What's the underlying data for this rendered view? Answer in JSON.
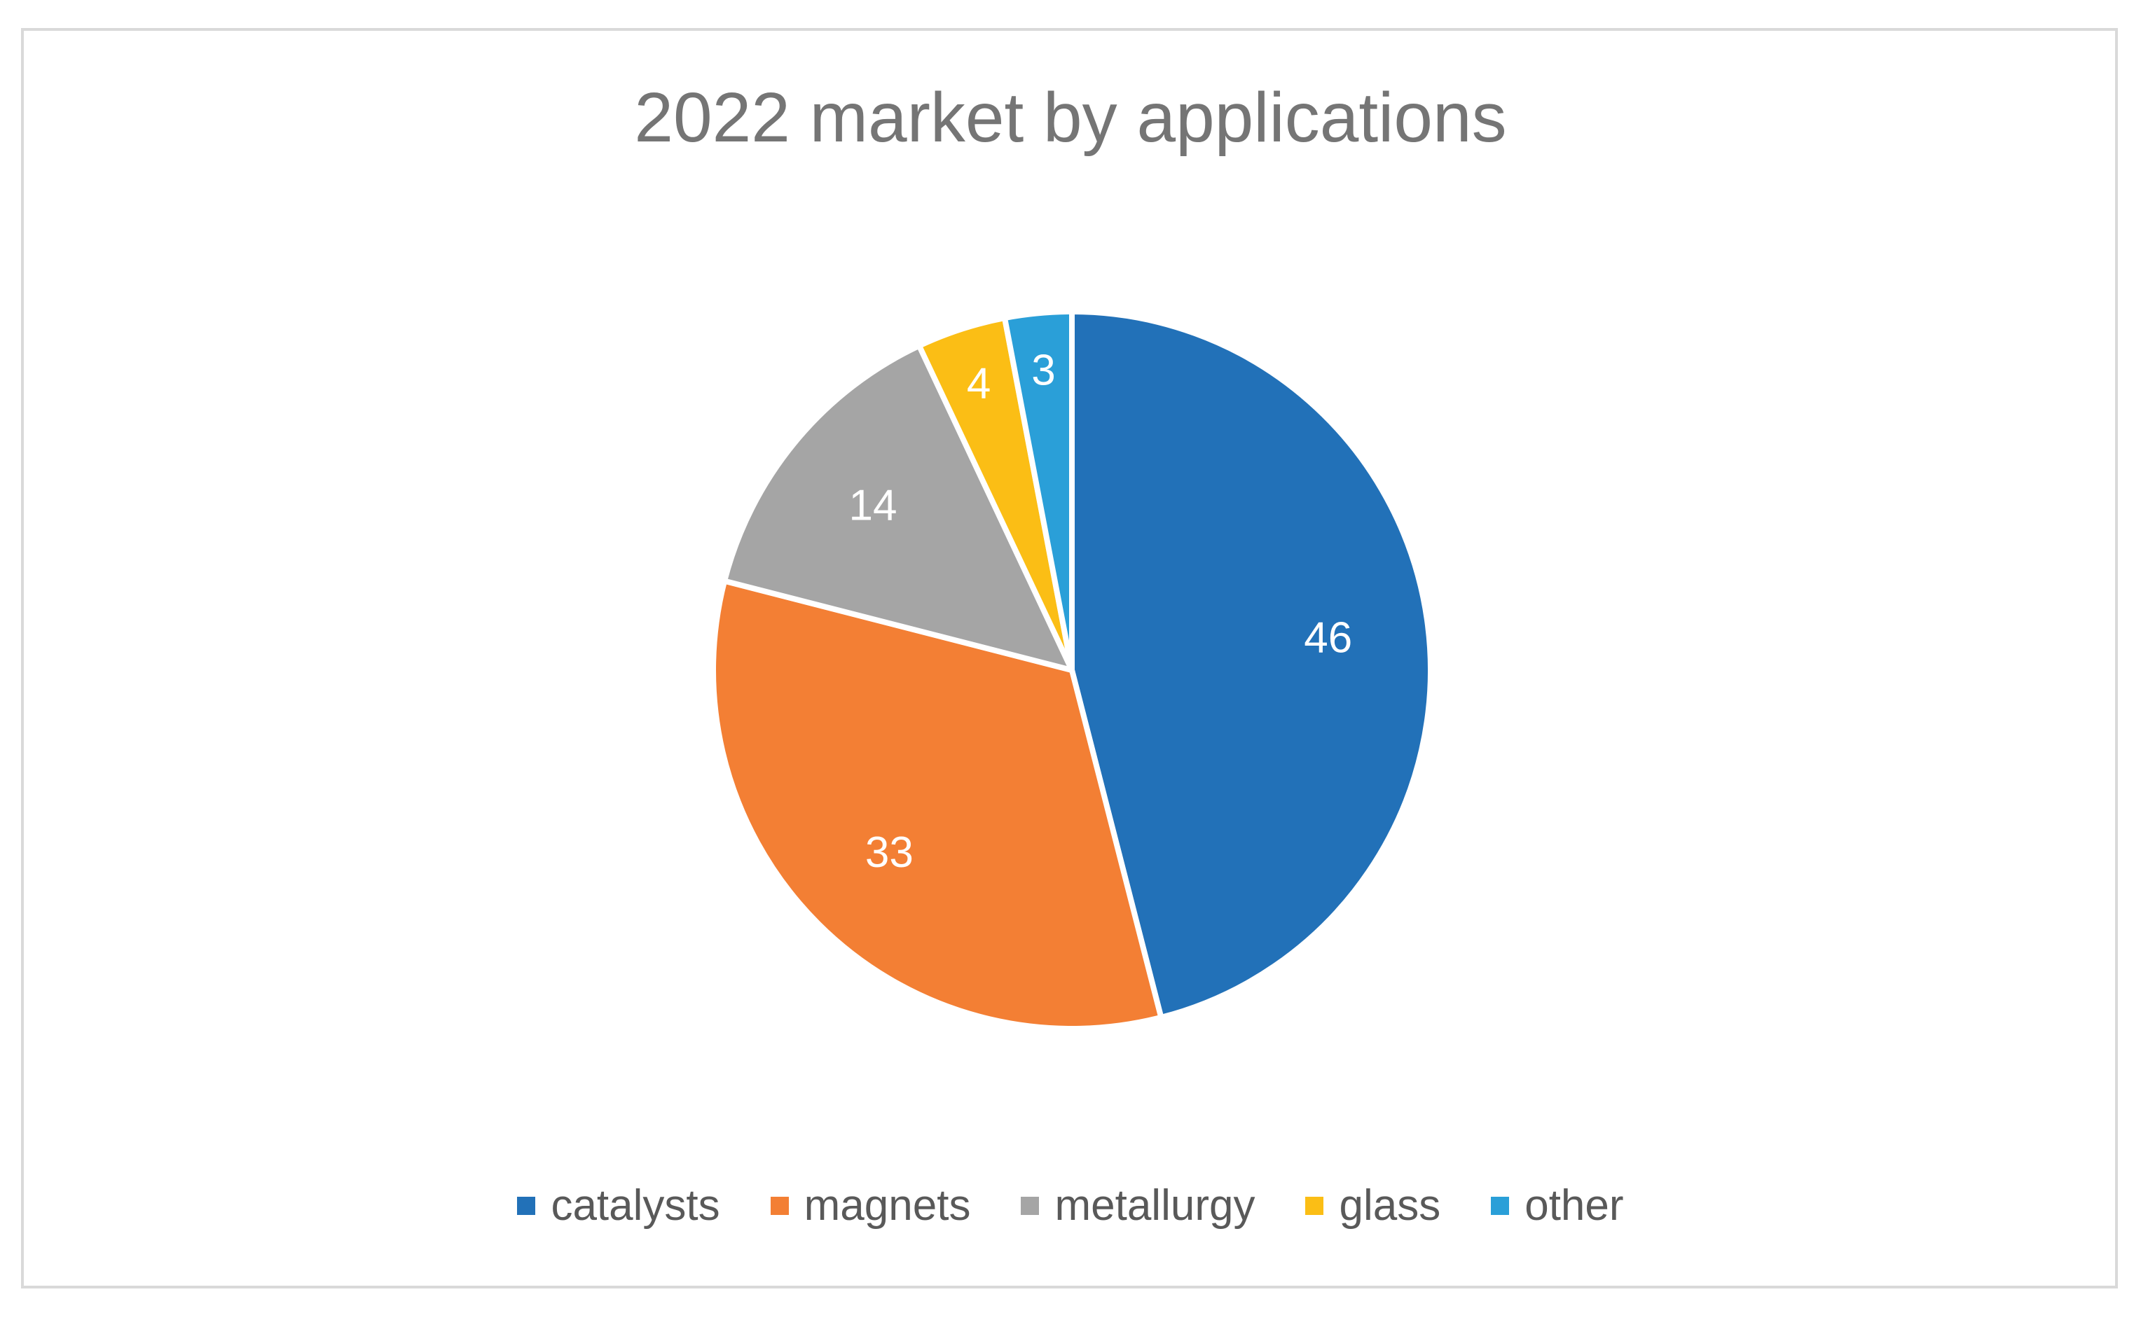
{
  "chart_data": {
    "type": "pie",
    "title": "2022 market by applications",
    "categories": [
      "catalysts",
      "magnets",
      "metallurgy",
      "glass",
      "other"
    ],
    "values": [
      46,
      33,
      14,
      4,
      3
    ],
    "colors": [
      "#2271b8",
      "#f37f34",
      "#a5a5a5",
      "#fbbe15",
      "#2a9fd8"
    ],
    "data_labels": [
      "46",
      "33",
      "14",
      "4",
      "3"
    ],
    "legend": "bottom",
    "start_angle_deg": 0,
    "direction": "clockwise"
  }
}
